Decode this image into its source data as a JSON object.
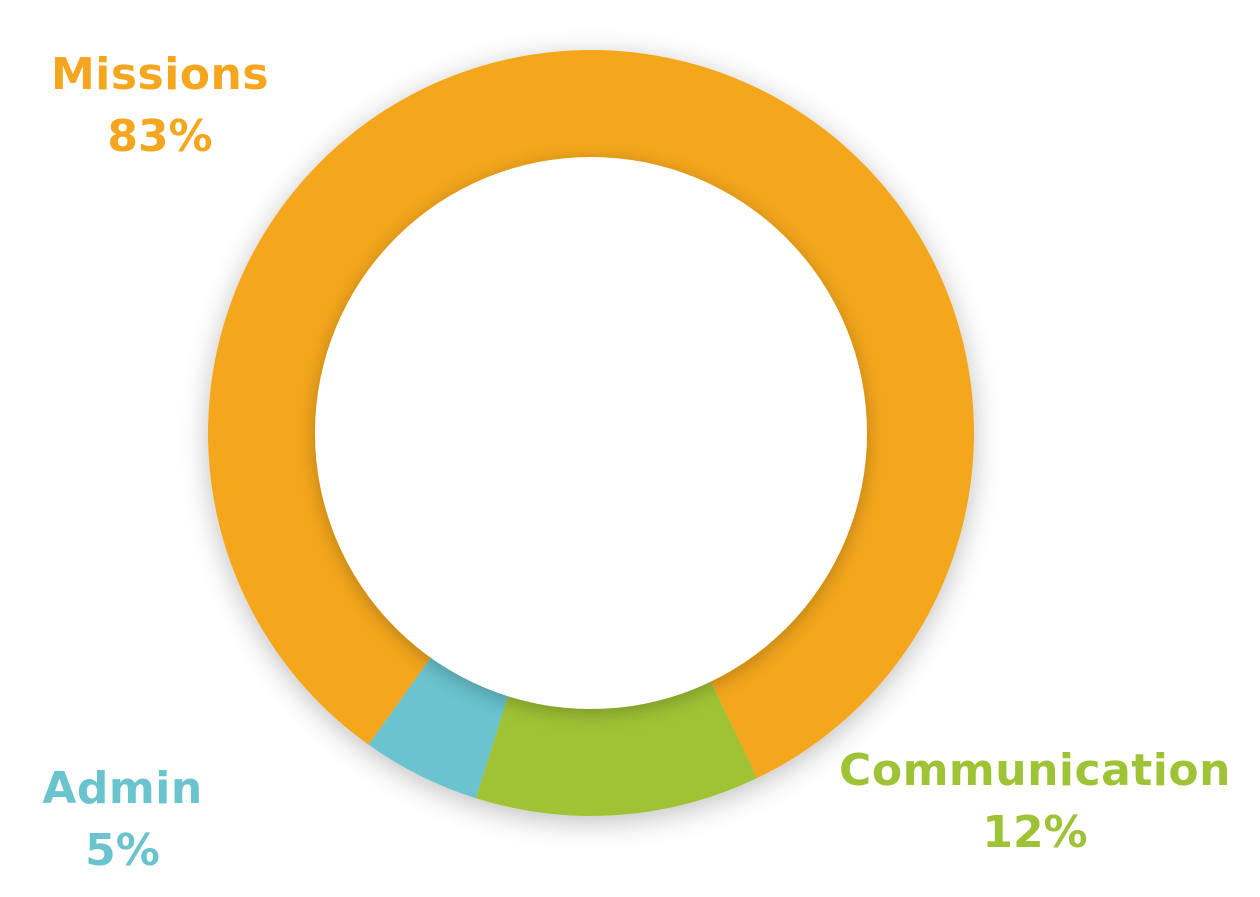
{
  "chart_data": {
    "type": "pie",
    "subtype": "donut",
    "slices": [
      {
        "label": "Missions",
        "value": 83,
        "display": "83%",
        "color": "#F4A71E"
      },
      {
        "label": "Communication",
        "value": 12,
        "display": "12%",
        "color": "#9FC336"
      },
      {
        "label": "Admin",
        "value": 5,
        "display": "5%",
        "color": "#6BC3CE"
      }
    ],
    "legend": "none",
    "labels_placement": "outside-corners"
  }
}
